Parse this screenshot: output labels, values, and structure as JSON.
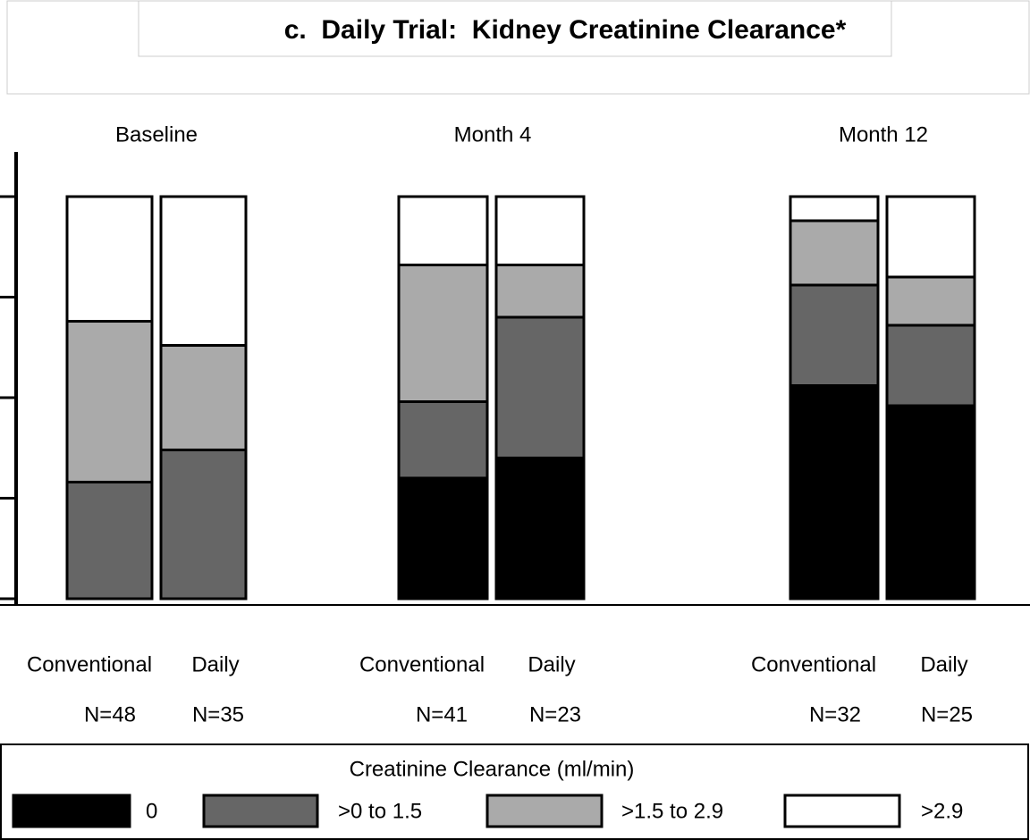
{
  "chart_data": {
    "type": "stacked_bar",
    "title": "c.  Daily Trial:  Kidney Creatinine Clearance*",
    "groups": [
      "Baseline",
      "Month 4",
      "Month 12"
    ],
    "categories": [
      "Conventional",
      "Daily",
      "Conventional",
      "Daily",
      "Conventional",
      "Daily"
    ],
    "n_labels": [
      "N=48",
      "N=35",
      "N=41",
      "N=23",
      "N=32",
      "N=25"
    ],
    "legend_title": "Creatinine Clearance (ml/min)",
    "series": [
      {
        "name": "0",
        "color": "#000000",
        "values": [
          0,
          0,
          30,
          35,
          53,
          48
        ]
      },
      {
        "name": ">0 to 1.5",
        "color": "#666666",
        "values": [
          29,
          37,
          19,
          35,
          25,
          20
        ]
      },
      {
        "name": ">1.5 to 2.9",
        "color": "#aaaaaa",
        "values": [
          40,
          26,
          34,
          13,
          16,
          12
        ]
      },
      {
        "name": ">2.9",
        "color": "#ffffff",
        "values": [
          31,
          37,
          17,
          17,
          6,
          20
        ]
      }
    ],
    "ylim": [
      0,
      100
    ],
    "yticks": [
      0,
      25,
      50,
      75,
      100
    ]
  }
}
